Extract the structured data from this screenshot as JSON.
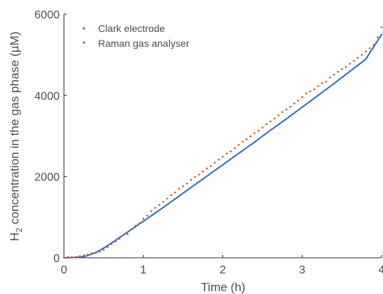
{
  "chart_data": {
    "type": "scatter",
    "xlabel": "Time (h)",
    "ylabel": {
      "prefix": "H",
      "subscript": "2",
      "suffix": " concentration in the gas phase (µM)"
    },
    "xlim": [
      0,
      4
    ],
    "ylim": [
      0,
      6000
    ],
    "xticks": [
      0,
      1,
      2,
      3,
      4
    ],
    "yticks": [
      0,
      2000,
      4000,
      6000
    ],
    "grid": false,
    "legend_position": "top-left",
    "series": [
      {
        "name": "Clark electrode",
        "color": "#2e6fb8",
        "render": "dense-dots",
        "x": [
          0,
          0.1,
          0.2,
          0.25,
          0.3,
          0.35,
          0.4,
          0.45,
          0.5,
          0.55,
          0.6,
          0.65,
          0.7,
          0.75,
          0.8,
          0.9,
          1.0,
          1.2,
          1.4,
          1.6,
          1.8,
          2.0,
          2.2,
          2.4,
          2.6,
          2.8,
          3.0,
          3.2,
          3.4,
          3.6,
          3.8,
          4.0
        ],
        "y": [
          0,
          5,
          15,
          30,
          55,
          90,
          130,
          180,
          240,
          300,
          365,
          430,
          500,
          565,
          630,
          765,
          900,
          1170,
          1450,
          1730,
          2010,
          2290,
          2570,
          2850,
          3140,
          3420,
          3710,
          4000,
          4290,
          4590,
          4890,
          5500
        ]
      },
      {
        "name": "Raman gas analyser",
        "color": "#d9531e",
        "render": "dots",
        "x": [
          0,
          0.05,
          0.1,
          0.15,
          0.2,
          0.25,
          0.3,
          0.35,
          0.4,
          0.45,
          0.5,
          0.55,
          0.6,
          0.65,
          0.7,
          0.75,
          0.8,
          0.85,
          0.9,
          0.95,
          1.0,
          1.05,
          1.1,
          1.15,
          1.2,
          1.25,
          1.3,
          1.35,
          1.4,
          1.45,
          1.5,
          1.55,
          1.6,
          1.65,
          1.7,
          1.75,
          1.8,
          1.85,
          1.9,
          1.95,
          2.0,
          2.05,
          2.1,
          2.15,
          2.2,
          2.25,
          2.3,
          2.35,
          2.4,
          2.45,
          2.5,
          2.55,
          2.6,
          2.65,
          2.7,
          2.75,
          2.8,
          2.85,
          2.9,
          2.95,
          3.0,
          3.05,
          3.1,
          3.15,
          3.2,
          3.25,
          3.3,
          3.35,
          3.4,
          3.45,
          3.5,
          3.55,
          3.6,
          3.65,
          3.7,
          3.75,
          3.8,
          3.85,
          3.9,
          3.95,
          4.0
        ],
        "y": [
          10,
          20,
          15,
          20,
          40,
          60,
          80,
          110,
          120,
          150,
          200,
          260,
          340,
          400,
          470,
          560,
          580,
          700,
          790,
          850,
          960,
          1040,
          1150,
          1230,
          1300,
          1380,
          1460,
          1540,
          1610,
          1700,
          1760,
          1830,
          1920,
          1990,
          2050,
          2130,
          2200,
          2260,
          2340,
          2420,
          2490,
          2570,
          2620,
          2700,
          2780,
          2860,
          2920,
          2990,
          3070,
          3130,
          3210,
          3290,
          3360,
          3430,
          3510,
          3590,
          3650,
          3720,
          3800,
          3870,
          3960,
          4050,
          4100,
          4150,
          4230,
          4300,
          4340,
          4440,
          4510,
          4580,
          4650,
          4700,
          4780,
          4850,
          4930,
          5000,
          5080,
          5160,
          5240,
          5430,
          5680
        ]
      }
    ]
  }
}
